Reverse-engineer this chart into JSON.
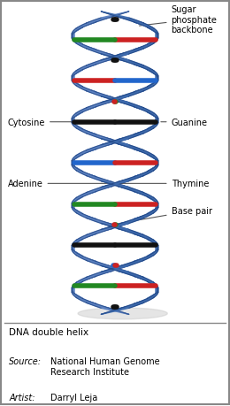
{
  "title": "DNA double helix",
  "background_color": "#ffffff",
  "border_color": "#888888",
  "helix_color_front": "#3d6aad",
  "helix_color_back": "#5a80c0",
  "helix_edge_color": "#1a3d7a",
  "helix_highlight": "#7da0d8",
  "labels": {
    "sugar_phosphate": "Sugar\nphosphate\nbackbone",
    "base_pair": "Base pair",
    "adenine": "Adenine",
    "thymine": "Thymine",
    "cytosine": "Cytosine",
    "guanine": "Guanine"
  },
  "caption_title": "DNA double helix",
  "source_label": "Source:",
  "source_text": "National Human Genome\nResearch Institute",
  "artist_label": "Artist:",
  "artist_text": "Darryl Leja",
  "figsize": [
    2.6,
    4.6
  ],
  "dpi": 100
}
